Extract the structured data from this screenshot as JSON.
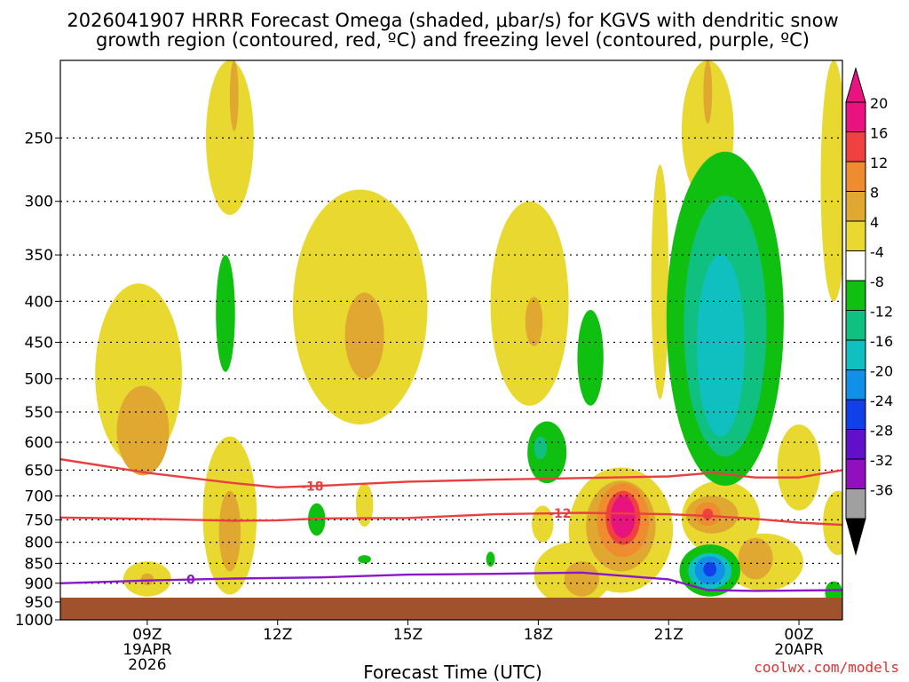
{
  "chart_data": {
    "type": "contour",
    "title_line1": "2026041907 HRRR Forecast Omega (shaded, μbar/s) for KGVS with dendritic snow",
    "title_line2": "growth region (contoured, red, ºC) and freezing level (contoured, purple, ºC)",
    "xlabel": "Forecast Time (UTC)",
    "credit": "coolwx.com/models",
    "x_range_hours": [
      7.0,
      25.0
    ],
    "x_ticks": [
      {
        "hour": 9,
        "label": "09Z",
        "sub1": "19APR",
        "sub2": "2026"
      },
      {
        "hour": 12,
        "label": "12Z",
        "sub1": "",
        "sub2": ""
      },
      {
        "hour": 15,
        "label": "15Z",
        "sub1": "",
        "sub2": ""
      },
      {
        "hour": 18,
        "label": "18Z",
        "sub1": "",
        "sub2": ""
      },
      {
        "hour": 21,
        "label": "21Z",
        "sub1": "",
        "sub2": ""
      },
      {
        "hour": 24,
        "label": "00Z",
        "sub1": "20APR",
        "sub2": ""
      }
    ],
    "y_range_mb": [
      200,
      1000
    ],
    "y_ticks": [
      {
        "p": 250,
        "label": "250"
      },
      {
        "p": 300,
        "label": "300"
      },
      {
        "p": 350,
        "label": "350"
      },
      {
        "p": 400,
        "label": "400"
      },
      {
        "p": 450,
        "label": "450"
      },
      {
        "p": 500,
        "label": "500"
      },
      {
        "p": 550,
        "label": "550"
      },
      {
        "p": 600,
        "label": "600"
      },
      {
        "p": 650,
        "label": "650"
      },
      {
        "p": 700,
        "label": "700"
      },
      {
        "p": 750,
        "label": "750"
      },
      {
        "p": 800,
        "label": "800"
      },
      {
        "p": 850,
        "label": "850"
      },
      {
        "p": 900,
        "label": "900"
      },
      {
        "p": 950,
        "label": "950"
      },
      {
        "p": 1000,
        "label": "1000"
      }
    ],
    "colorbar": [
      {
        "label": "20",
        "color": "#e8137f"
      },
      {
        "label": "16",
        "color": "#f04040"
      },
      {
        "label": "12",
        "color": "#f08c30"
      },
      {
        "label": "8",
        "color": "#e0a830"
      },
      {
        "label": "4",
        "color": "#e8d830"
      },
      {
        "label": "-4",
        "color": "#ffffff"
      },
      {
        "label": "-8",
        "color": "#10c010"
      },
      {
        "label": "-12",
        "color": "#10c080"
      },
      {
        "label": "-16",
        "color": "#10c0c0"
      },
      {
        "label": "-20",
        "color": "#1090e8"
      },
      {
        "label": "-24",
        "color": "#1040e8"
      },
      {
        "label": "-28",
        "color": "#6010c8"
      },
      {
        "label": "-32",
        "color": "#9010c0"
      },
      {
        "label": "-36",
        "color": "#a0a0a0"
      }
    ],
    "colorbar_top_color": "#e8137f",
    "colorbar_bottom_color": "#000000",
    "ground_color": "#a0522d",
    "dgz_lines": [
      {
        "label": "-18",
        "label_hour": 12.8,
        "points": [
          [
            7,
            630
          ],
          [
            9,
            655
          ],
          [
            11,
            675
          ],
          [
            12,
            683
          ],
          [
            13,
            680
          ],
          [
            15,
            672
          ],
          [
            17,
            668
          ],
          [
            19,
            665
          ],
          [
            21,
            662
          ],
          [
            22,
            655
          ],
          [
            23,
            664
          ],
          [
            24,
            664
          ],
          [
            25,
            650
          ]
        ]
      },
      {
        "label": "-12",
        "label_hour": 18.5,
        "points": [
          [
            7,
            745
          ],
          [
            9,
            748
          ],
          [
            11,
            752
          ],
          [
            12,
            751
          ],
          [
            13,
            747
          ],
          [
            15,
            746
          ],
          [
            17,
            738
          ],
          [
            19,
            735
          ],
          [
            21,
            738
          ],
          [
            22,
            742
          ],
          [
            23,
            748
          ],
          [
            24,
            756
          ],
          [
            25,
            761
          ]
        ]
      }
    ],
    "freezing_lines": [
      {
        "label": "0",
        "label_hour": 10.0,
        "points": [
          [
            7,
            900
          ],
          [
            9,
            893
          ],
          [
            11,
            888
          ],
          [
            13,
            885
          ],
          [
            15,
            878
          ],
          [
            17,
            876
          ],
          [
            19,
            873
          ],
          [
            21,
            890
          ],
          [
            21.9,
            918
          ],
          [
            23,
            920
          ],
          [
            25,
            918
          ]
        ]
      }
    ],
    "omega_regions": [
      {
        "color": "#e8d830",
        "hour": 10.9,
        "p": 222,
        "rx": 0.55,
        "rp": 90
      },
      {
        "color": "#e0a830",
        "hour": 11.0,
        "p": 215,
        "rx": 0.1,
        "rp": 30
      },
      {
        "color": "#e8d830",
        "hour": 8.8,
        "p": 510,
        "rx": 1.0,
        "rp": 130
      },
      {
        "color": "#e0a830",
        "hour": 8.9,
        "p": 585,
        "rx": 0.6,
        "rp": 75
      },
      {
        "color": "#e8d830",
        "hour": 13.9,
        "p": 430,
        "rx": 1.55,
        "rp": 140
      },
      {
        "color": "#e0a830",
        "hour": 14.0,
        "p": 445,
        "rx": 0.45,
        "rp": 55
      },
      {
        "color": "#e8d830",
        "hour": 17.8,
        "p": 420,
        "rx": 0.9,
        "rp": 120
      },
      {
        "color": "#e0a830",
        "hour": 17.9,
        "p": 425,
        "rx": 0.2,
        "rp": 30
      },
      {
        "color": "#e8d830",
        "hour": 10.9,
        "p": 760,
        "rx": 0.62,
        "rp": 170
      },
      {
        "color": "#e0a830",
        "hour": 10.9,
        "p": 780,
        "rx": 0.25,
        "rp": 90
      },
      {
        "color": "#e8d830",
        "hour": 9.0,
        "p": 890,
        "rx": 0.55,
        "rp": 45
      },
      {
        "color": "#e0a830",
        "hour": 9.0,
        "p": 890,
        "rx": 0.15,
        "rp": 15
      },
      {
        "color": "#e8d830",
        "hour": 14.0,
        "p": 720,
        "rx": 0.2,
        "rp": 45
      },
      {
        "color": "#e8d830",
        "hour": 18.1,
        "p": 760,
        "rx": 0.25,
        "rp": 40
      },
      {
        "color": "#e8d830",
        "hour": 19.9,
        "p": 785,
        "rx": 1.2,
        "rp": 140
      },
      {
        "color": "#e8d830",
        "hour": 18.8,
        "p": 880,
        "rx": 0.9,
        "rp": 80
      },
      {
        "color": "#e0a830",
        "hour": 19.9,
        "p": 770,
        "rx": 0.8,
        "rp": 100
      },
      {
        "color": "#e0a830",
        "hour": 19.0,
        "p": 890,
        "rx": 0.4,
        "rp": 45
      },
      {
        "color": "#f08c30",
        "hour": 19.95,
        "p": 755,
        "rx": 0.6,
        "rp": 80
      },
      {
        "color": "#f04040",
        "hour": 19.95,
        "p": 748,
        "rx": 0.4,
        "rp": 58
      },
      {
        "color": "#e8137f",
        "hour": 19.95,
        "p": 745,
        "rx": 0.28,
        "rp": 45
      },
      {
        "color": "#e8d830",
        "hour": 21.9,
        "p": 215,
        "rx": 0.6,
        "rp": 85
      },
      {
        "color": "#e0a830",
        "hour": 21.9,
        "p": 215,
        "rx": 0.1,
        "rp": 25
      },
      {
        "color": "#e8d830",
        "hour": 20.8,
        "p": 400,
        "rx": 0.2,
        "rp": 130
      },
      {
        "color": "#e8d830",
        "hour": 22.2,
        "p": 750,
        "rx": 0.9,
        "rp": 80
      },
      {
        "color": "#e0a830",
        "hour": 22.0,
        "p": 740,
        "rx": 0.6,
        "rp": 40
      },
      {
        "color": "#f08c30",
        "hour": 21.9,
        "p": 738,
        "rx": 0.3,
        "rp": 25
      },
      {
        "color": "#f04040",
        "hour": 21.9,
        "p": 738,
        "rx": 0.12,
        "rp": 12
      },
      {
        "color": "#e8d830",
        "hour": 23.2,
        "p": 850,
        "rx": 0.9,
        "rp": 70
      },
      {
        "color": "#e0a830",
        "hour": 23.0,
        "p": 840,
        "rx": 0.4,
        "rp": 50
      },
      {
        "color": "#e8d830",
        "hour": 24.0,
        "p": 650,
        "rx": 0.5,
        "rp": 80
      },
      {
        "color": "#e8d830",
        "hour": 24.9,
        "p": 760,
        "rx": 0.35,
        "rp": 70
      },
      {
        "color": "#e8d830",
        "hour": 24.8,
        "p": 300,
        "rx": 0.3,
        "rp": 100
      },
      {
        "color": "#10c010",
        "hour": 10.8,
        "p": 420,
        "rx": 0.22,
        "rp": 70
      },
      {
        "color": "#10c010",
        "hour": 12.9,
        "p": 750,
        "rx": 0.2,
        "rp": 35
      },
      {
        "color": "#10c010",
        "hour": 14.0,
        "p": 840,
        "rx": 0.15,
        "rp": 10
      },
      {
        "color": "#10c010",
        "hour": 16.9,
        "p": 840,
        "rx": 0.1,
        "rp": 18
      },
      {
        "color": "#10c010",
        "hour": 18.2,
        "p": 620,
        "rx": 0.45,
        "rp": 55
      },
      {
        "color": "#10c080",
        "hour": 18.05,
        "p": 610,
        "rx": 0.15,
        "rp": 20
      },
      {
        "color": "#10c010",
        "hour": 19.2,
        "p": 475,
        "rx": 0.3,
        "rp": 65
      },
      {
        "color": "#10c010",
        "hour": 22.3,
        "p": 470,
        "rx": 1.35,
        "rp": 210
      },
      {
        "color": "#10c080",
        "hour": 22.3,
        "p": 460,
        "rx": 0.95,
        "rp": 165
      },
      {
        "color": "#10c0c0",
        "hour": 22.2,
        "p": 470,
        "rx": 0.55,
        "rp": 120
      },
      {
        "color": "#10c010",
        "hour": 21.95,
        "p": 870,
        "rx": 0.7,
        "rp": 65
      },
      {
        "color": "#10c0c0",
        "hour": 21.95,
        "p": 870,
        "rx": 0.5,
        "rp": 45
      },
      {
        "color": "#1090e8",
        "hour": 21.95,
        "p": 868,
        "rx": 0.35,
        "rp": 35
      },
      {
        "color": "#1040e8",
        "hour": 21.95,
        "p": 865,
        "rx": 0.15,
        "rp": 18
      },
      {
        "color": "#10c010",
        "hour": 24.8,
        "p": 925,
        "rx": 0.2,
        "rp": 30
      }
    ]
  }
}
